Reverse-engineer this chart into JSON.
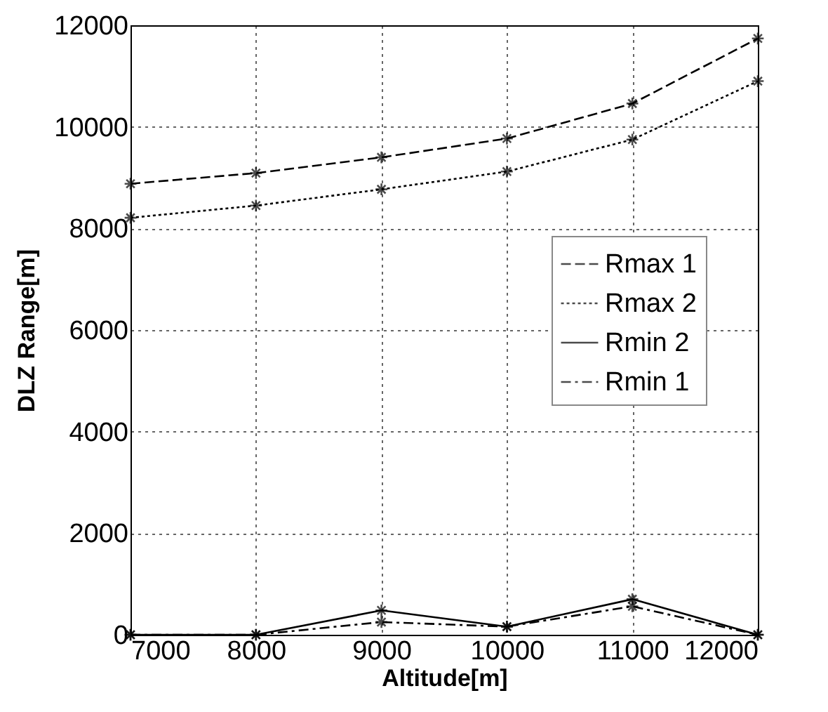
{
  "chart_data": {
    "type": "line",
    "xlabel": "Altitude[m]",
    "ylabel": "DLZ Range[m]",
    "x": [
      7000,
      8000,
      9000,
      10000,
      11000,
      12000
    ],
    "series": [
      {
        "name": "Rmax 1",
        "color": "#000000",
        "line_style": "dashed",
        "values": [
          8880,
          9090,
          9400,
          9770,
          10460,
          11740
        ]
      },
      {
        "name": "Rmax 2",
        "color": "#000000",
        "line_style": "dotted",
        "values": [
          8210,
          8450,
          8770,
          9120,
          9750,
          10900
        ]
      },
      {
        "name": "Rmin 2",
        "color": "#000000",
        "line_style": "solid",
        "values": [
          0,
          0,
          480,
          160,
          700,
          0
        ]
      },
      {
        "name": "Rmin 1",
        "color": "#000000",
        "line_style": "dashdot",
        "values": [
          0,
          0,
          250,
          160,
          560,
          0
        ]
      }
    ],
    "xlim": [
      7000,
      12000
    ],
    "xticks": [
      7000,
      8000,
      9000,
      10000,
      11000,
      12000
    ],
    "ylim": [
      0,
      12000
    ],
    "yticks": [
      0,
      2000,
      4000,
      6000,
      8000,
      10000,
      12000
    ],
    "grid": true,
    "legend": "right",
    "marker": "cross"
  }
}
